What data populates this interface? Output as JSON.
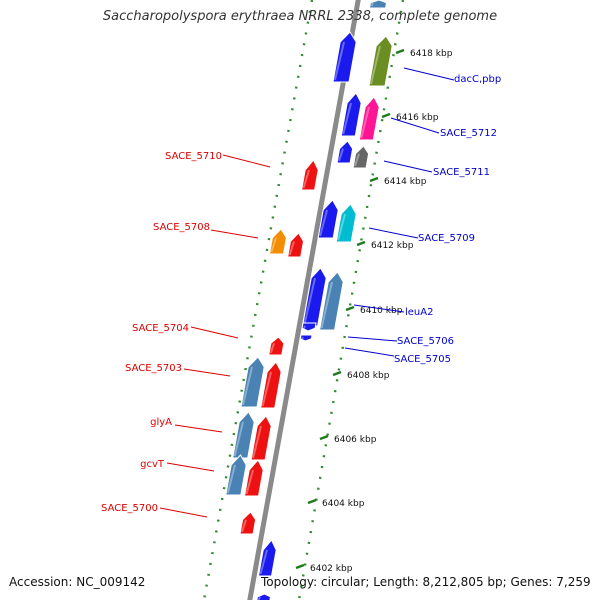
{
  "title": "Saccharopolyspora erythraea NRRL 2338, complete genome",
  "footer": {
    "accession": "Accession: NC_009142",
    "topology": "Topology: circular; Length: 8,212,805 bp; Genes: 7,259"
  },
  "colors": {
    "backbone": "#8a8a8a",
    "grid_dots": "#2e8b2e",
    "forward_label": "#0000cc",
    "reverse_label": "#dd0000",
    "gene_blue": "#1a1aee",
    "gene_red": "#ee1111",
    "gene_steelblue": "#4a82b4",
    "gene_olive": "#6b8e23",
    "gene_magenta": "#ff1493",
    "gene_gray": "#666666",
    "gene_cyan": "#00bcd0",
    "gene_orange": "#f28c00"
  },
  "scale": {
    "unit": "kbp",
    "ticks": [
      {
        "label": "6418 kbp",
        "kbp": 6418
      },
      {
        "label": "6416 kbp",
        "kbp": 6416
      },
      {
        "label": "6414 kbp",
        "kbp": 6414
      },
      {
        "label": "6412 kbp",
        "kbp": 6412
      },
      {
        "label": "6410 kbp",
        "kbp": 6410
      },
      {
        "label": "6408 kbp",
        "kbp": 6408
      },
      {
        "label": "6406 kbp",
        "kbp": 6406
      },
      {
        "label": "6404 kbp",
        "kbp": 6404
      },
      {
        "label": "6402 kbp",
        "kbp": 6402
      }
    ]
  },
  "forward_labels": [
    "dacC,pbp",
    "SACE_5712",
    "SACE_5711",
    "SACE_5709",
    "leuA2",
    "SACE_5706",
    "SACE_5705"
  ],
  "reverse_labels": [
    "SACE_5710",
    "SACE_5708",
    "SACE_5704",
    "SACE_5703",
    "glyA",
    "gcvT",
    "SACE_5700"
  ]
}
